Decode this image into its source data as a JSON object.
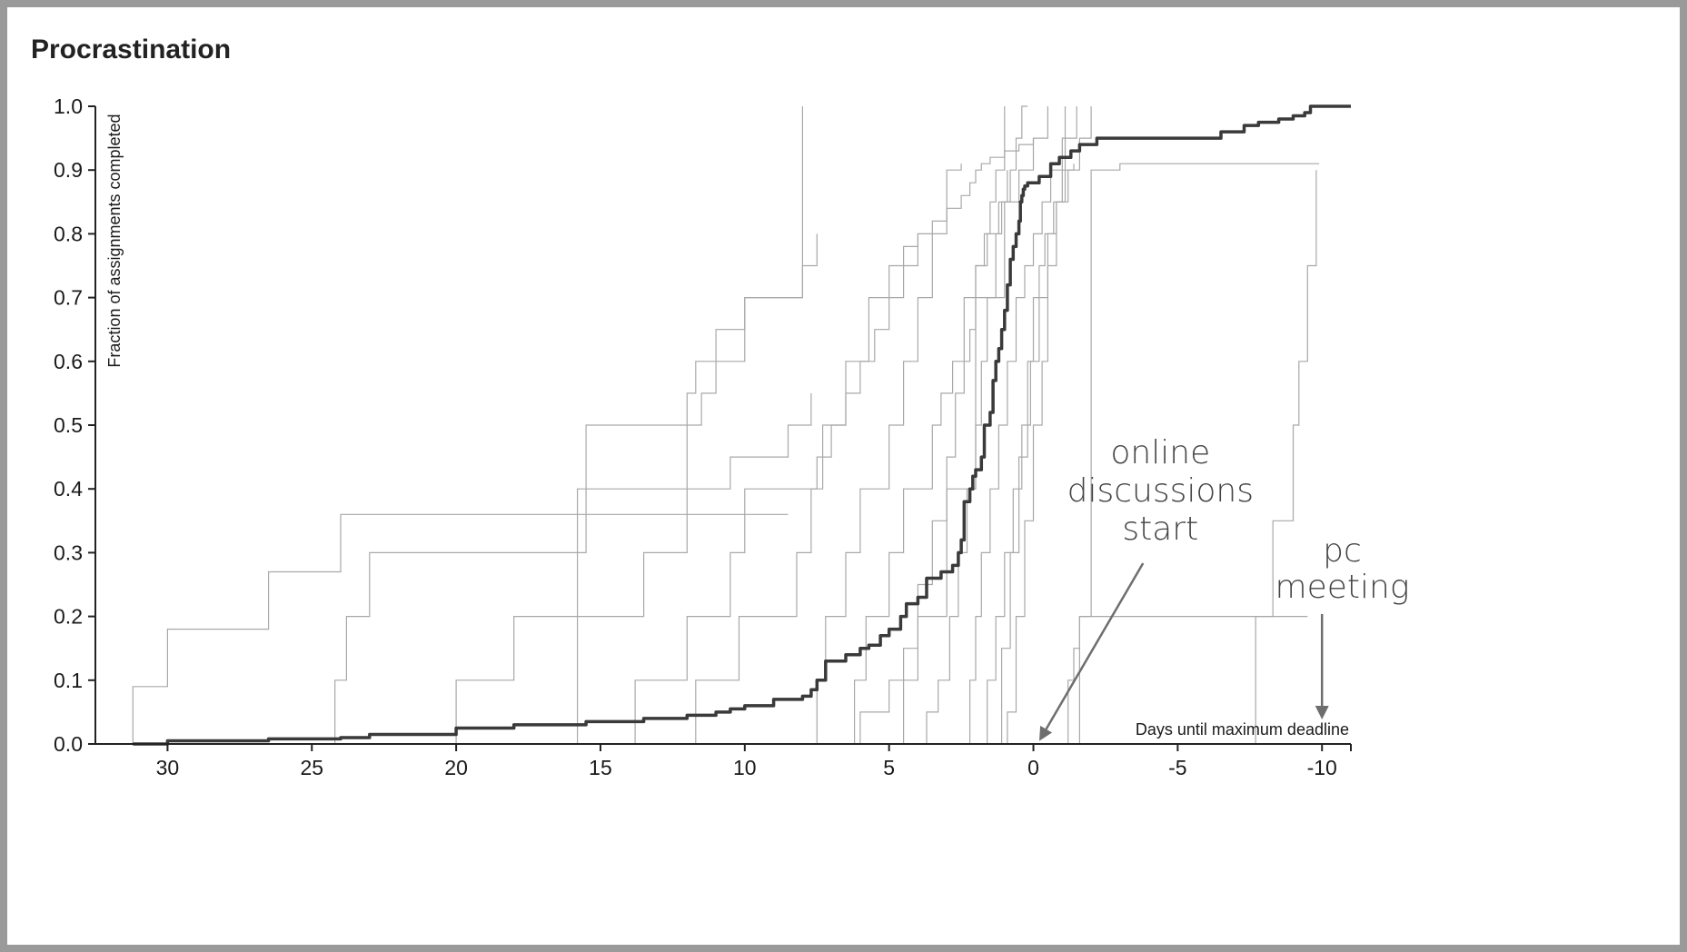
{
  "chart_data": {
    "type": "line",
    "subtype": "step",
    "title": "Procrastination",
    "xlabel": "Days until maximum deadline",
    "ylabel": "Fraction of assignments completed",
    "xlim": [
      32.5,
      -11
    ],
    "ylim": [
      0,
      1
    ],
    "x_reversed": true,
    "grid": false,
    "legend": "none",
    "xticks": [
      30,
      25,
      20,
      15,
      10,
      5,
      0,
      -5,
      -10
    ],
    "yticks": [
      "0.0",
      "0.1",
      "0.2",
      "0.3",
      "0.4",
      "0.5",
      "0.6",
      "0.7",
      "0.8",
      "0.9",
      "1.0"
    ],
    "colors": {
      "aggregate": "#3a3a3a",
      "individual": "#a8a8a8",
      "arrow": "#6e6e6e",
      "annotation_text": "#444444"
    },
    "series": [
      {
        "role": "aggregate",
        "x": [
          31.2,
          30,
          26.5,
          24,
          23,
          20,
          18,
          15.5,
          13.5,
          12,
          11,
          10.5,
          10,
          9,
          8,
          7.7,
          7.5,
          7.2,
          6.5,
          6,
          5.7,
          5.3,
          5,
          4.6,
          4.4,
          4,
          3.7,
          3.2,
          2.8,
          2.6,
          2.5,
          2.4,
          2.2,
          2.1,
          2,
          1.8,
          1.7,
          1.5,
          1.4,
          1.3,
          1.2,
          1.1,
          1,
          0.9,
          0.8,
          0.7,
          0.6,
          0.5,
          0.45,
          0.4,
          0.35,
          0.3,
          0.2,
          0,
          -0.2,
          -0.6,
          -0.9,
          -1.3,
          -1.6,
          -2.2,
          -3,
          -5,
          -6.5,
          -7.3,
          -7.8,
          -8.5,
          -9,
          -9.4,
          -9.6,
          -9.9,
          -10.3,
          -11
        ],
        "y": [
          0,
          0.005,
          0.008,
          0.01,
          0.015,
          0.025,
          0.03,
          0.035,
          0.04,
          0.045,
          0.05,
          0.055,
          0.06,
          0.07,
          0.075,
          0.085,
          0.1,
          0.13,
          0.14,
          0.15,
          0.155,
          0.17,
          0.18,
          0.2,
          0.22,
          0.23,
          0.26,
          0.27,
          0.28,
          0.3,
          0.32,
          0.38,
          0.4,
          0.42,
          0.43,
          0.45,
          0.5,
          0.52,
          0.57,
          0.6,
          0.62,
          0.65,
          0.68,
          0.72,
          0.76,
          0.78,
          0.8,
          0.82,
          0.85,
          0.86,
          0.87,
          0.875,
          0.88,
          0.88,
          0.89,
          0.91,
          0.92,
          0.93,
          0.94,
          0.95,
          0.95,
          0.95,
          0.96,
          0.97,
          0.975,
          0.98,
          0.985,
          0.99,
          1,
          1,
          1,
          1
        ]
      },
      {
        "role": "individual",
        "x": [
          31.2,
          30,
          28.5,
          26.5,
          24,
          23,
          20,
          18,
          15.5,
          11.7,
          11.5,
          11,
          10,
          9,
          8.5
        ],
        "y": [
          0.09,
          0.18,
          0.18,
          0.27,
          0.36,
          0.36,
          0.36,
          0.36,
          0.36,
          0.36,
          0.36,
          0.36,
          0.36,
          0.36,
          0.36
        ]
      },
      {
        "role": "individual",
        "x": [
          24.2,
          23.8,
          23,
          18,
          15.5,
          12,
          11.5,
          11,
          10,
          8
        ],
        "y": [
          0.1,
          0.2,
          0.3,
          0.3,
          0.4,
          0.5,
          0.55,
          0.6,
          0.7,
          1
        ]
      },
      {
        "role": "individual",
        "x": [
          15.8,
          15.5,
          12,
          11.7,
          11,
          10,
          8,
          7.5
        ],
        "y": [
          0.4,
          0.5,
          0.55,
          0.6,
          0.65,
          0.7,
          0.75,
          0.8
        ]
      },
      {
        "role": "individual",
        "x": [
          20,
          18,
          15.5,
          13.5,
          12,
          10.5,
          8.5,
          7.7
        ],
        "y": [
          0.1,
          0.2,
          0.2,
          0.3,
          0.4,
          0.45,
          0.5,
          0.55
        ]
      },
      {
        "role": "individual",
        "x": [
          13.8,
          12,
          10.5,
          10,
          8,
          7.5,
          7,
          6.5,
          5.7,
          5,
          4.5,
          4
        ],
        "y": [
          0.1,
          0.2,
          0.3,
          0.4,
          0.4,
          0.45,
          0.5,
          0.6,
          0.7,
          0.75,
          0.78,
          0.8
        ]
      },
      {
        "role": "individual",
        "x": [
          11.7,
          10.2,
          8.2,
          7.7,
          7.3,
          6.5,
          6,
          5.5,
          5,
          4.5,
          4,
          3.5,
          3,
          2.5,
          2.2,
          2,
          1.8,
          1.5,
          1,
          0.5,
          0
        ],
        "y": [
          0.1,
          0.2,
          0.3,
          0.4,
          0.5,
          0.55,
          0.6,
          0.65,
          0.7,
          0.75,
          0.8,
          0.82,
          0.84,
          0.86,
          0.88,
          0.9,
          0.91,
          0.92,
          0.93,
          0.94,
          0.95
        ]
      },
      {
        "role": "individual",
        "x": [
          7.5,
          7.2,
          6.5,
          6,
          5,
          4.5,
          4,
          3.5,
          3,
          2.5
        ],
        "y": [
          0.1,
          0.2,
          0.3,
          0.4,
          0.5,
          0.6,
          0.7,
          0.8,
          0.9,
          0.91
        ]
      },
      {
        "role": "individual",
        "x": [
          6.2,
          5.8,
          5,
          4.5,
          3.5,
          3.2,
          2.8,
          2.4,
          2,
          1.6,
          1.2,
          0.9
        ],
        "y": [
          0.1,
          0.2,
          0.3,
          0.4,
          0.5,
          0.55,
          0.6,
          0.7,
          0.75,
          0.8,
          0.85,
          0.9
        ]
      },
      {
        "role": "individual",
        "x": [
          4.5,
          4,
          3.5,
          3,
          2.7,
          2.4,
          2.2,
          2,
          1.7,
          1.5,
          1.3,
          1
        ],
        "y": [
          0.15,
          0.25,
          0.35,
          0.45,
          0.55,
          0.6,
          0.65,
          0.75,
          0.8,
          0.85,
          0.9,
          1
        ]
      },
      {
        "role": "individual",
        "x": [
          3.7,
          3.3,
          2.9,
          2.6,
          2.3,
          2,
          1.8,
          1.6,
          1.3,
          1.1,
          0.8,
          0.6,
          0.4,
          0.2
        ],
        "y": [
          0.05,
          0.1,
          0.2,
          0.3,
          0.4,
          0.5,
          0.6,
          0.7,
          0.8,
          0.85,
          0.9,
          0.95,
          1,
          1
        ]
      },
      {
        "role": "individual",
        "x": [
          2.2,
          2,
          1.8,
          1.5,
          1.2,
          0.9,
          0.6,
          0.3,
          0,
          -0.3,
          -0.6,
          -1,
          -1.5
        ],
        "y": [
          0.1,
          0.2,
          0.3,
          0.4,
          0.5,
          0.6,
          0.7,
          0.75,
          0.8,
          0.85,
          0.9,
          0.95,
          1
        ]
      },
      {
        "role": "individual",
        "x": [
          1.6,
          1.3,
          1,
          0.7,
          0.4,
          0.1,
          -0.2,
          -0.5,
          -0.8,
          -1.2,
          -1.6,
          -2
        ],
        "y": [
          0.1,
          0.2,
          0.3,
          0.4,
          0.5,
          0.6,
          0.7,
          0.8,
          0.85,
          0.9,
          0.95,
          1
        ]
      },
      {
        "role": "individual",
        "x": [
          1.1,
          0.8,
          0.5,
          0.2,
          0,
          -0.2,
          -0.4,
          -0.7,
          -1,
          -1.4
        ],
        "y": [
          0.15,
          0.3,
          0.45,
          0.6,
          0.7,
          0.75,
          0.8,
          0.85,
          0.9,
          0.91
        ]
      },
      {
        "role": "individual",
        "x": [
          0.9,
          0.6,
          0.3,
          0,
          -0.3,
          -0.5,
          -0.8,
          -1.1
        ],
        "y": [
          0.05,
          0.2,
          0.35,
          0.5,
          0.6,
          0.75,
          0.85,
          1
        ]
      },
      {
        "role": "individual",
        "x": [
          -1.2,
          -1.4,
          -1.6,
          -2,
          -3,
          -5,
          -6.5,
          -7.5,
          -8,
          -9,
          -9.5
        ],
        "y": [
          0.1,
          0.15,
          0.2,
          0.2,
          0.2,
          0.2,
          0.2,
          0.2,
          0.2,
          0.2,
          0.2
        ]
      },
      {
        "role": "individual",
        "x": [
          -1.6,
          -2,
          -3,
          -5,
          -7.5,
          -8,
          -8.5,
          -9,
          -9.3,
          -9.6,
          -9.9
        ],
        "y": [
          0.2,
          0.9,
          0.91,
          0.91,
          0.91,
          0.91,
          0.91,
          0.91,
          0.91,
          0.91,
          0.91
        ]
      },
      {
        "role": "individual",
        "x": [
          -7.7,
          -8.3,
          -9,
          -9.2,
          -9.5,
          -9.8
        ],
        "y": [
          0.2,
          0.35,
          0.5,
          0.6,
          0.75,
          0.9
        ]
      },
      {
        "role": "individual",
        "x": [
          6,
          5,
          4,
          3,
          2,
          1,
          0.5,
          0,
          -0.5
        ],
        "y": [
          0.05,
          0.1,
          0.2,
          0.4,
          0.7,
          0.85,
          0.9,
          0.95,
          1
        ]
      }
    ],
    "annotations": [
      {
        "label_lines": [
          "online",
          "discussions",
          "start"
        ],
        "x": 0,
        "points_to": 0
      },
      {
        "label_lines": [
          "pc",
          "meeting"
        ],
        "x": -10,
        "points_to": -10
      }
    ]
  }
}
